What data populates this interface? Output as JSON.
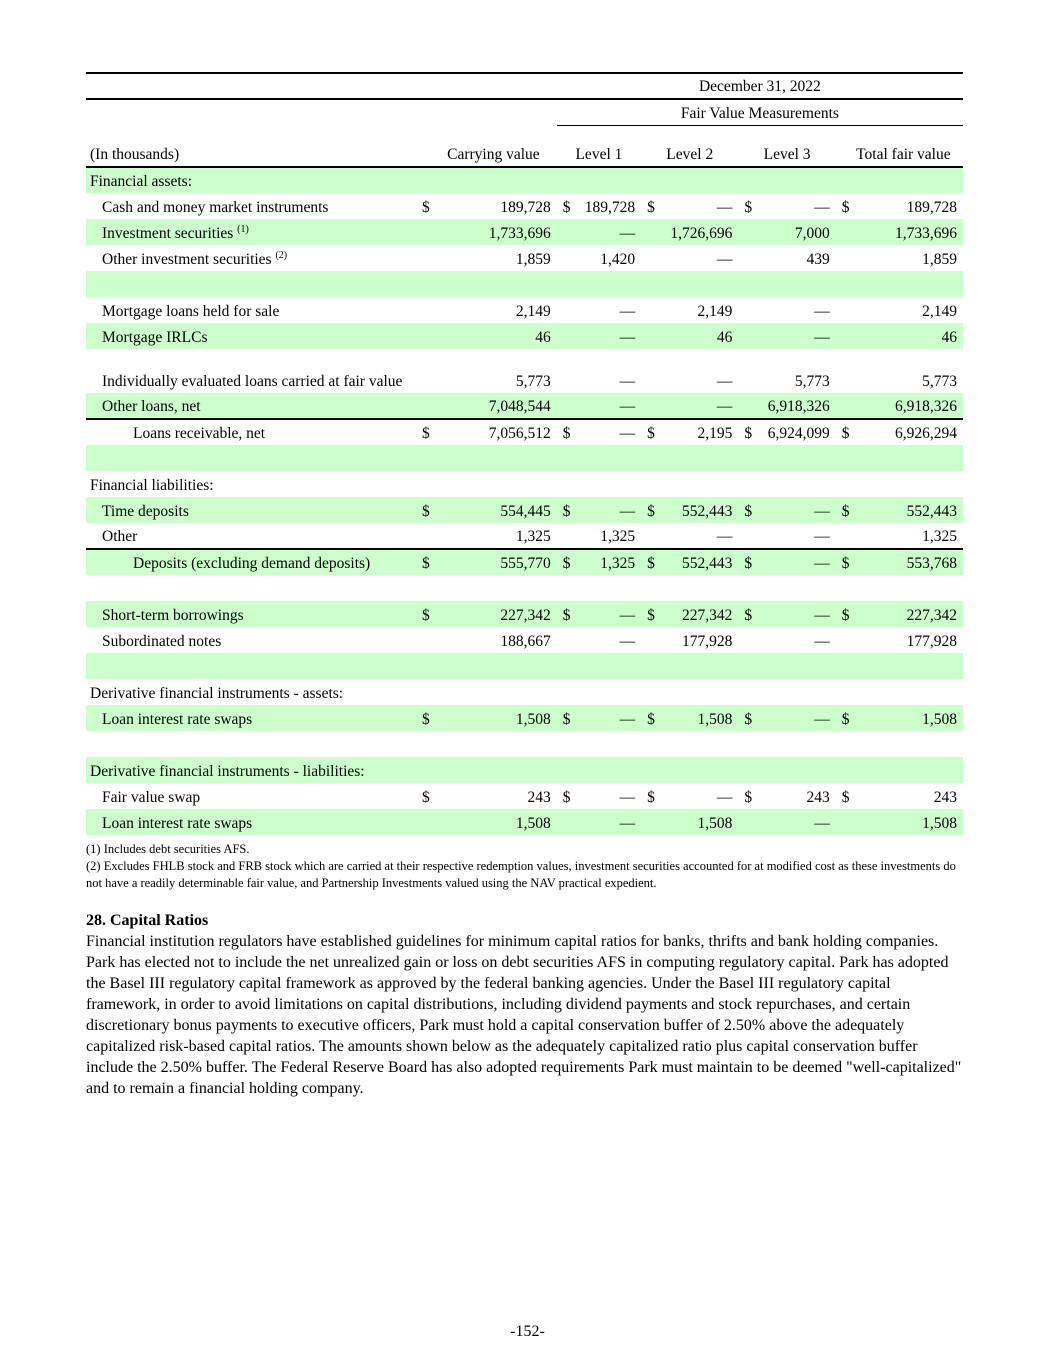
{
  "table": {
    "period": "December 31, 2022",
    "group_header": "Fair Value Measurements",
    "unit_label": "(In thousands)",
    "columns": [
      "Carrying value",
      "Level 1",
      "Level 2",
      "Level 3",
      "Total fair value"
    ],
    "shade_color": "#ccffcc",
    "rows": [
      {
        "label": "Financial assets:",
        "indent": 0,
        "section": true,
        "shaded": true
      },
      {
        "label": "Cash and money market instruments",
        "indent": 1,
        "dollar": true,
        "values": [
          "189,728",
          "189,728",
          "—",
          "—",
          "189,728"
        ],
        "shaded": false
      },
      {
        "label": "Investment securities",
        "sup": "(1)",
        "indent": 1,
        "values": [
          "1,733,696",
          "—",
          "1,726,696",
          "7,000",
          "1,733,696"
        ],
        "shaded": true
      },
      {
        "label": "Other investment securities",
        "sup": "(2)",
        "indent": 1,
        "values": [
          "1,859",
          "1,420",
          "—",
          "439",
          "1,859"
        ],
        "shaded": false
      },
      {
        "label": "",
        "blank": true,
        "shaded": true
      },
      {
        "label": "Mortgage loans held for sale",
        "indent": 1,
        "values": [
          "2,149",
          "—",
          "2,149",
          "—",
          "2,149"
        ],
        "shaded": false
      },
      {
        "label": "Mortgage IRLCs",
        "indent": 1,
        "values": [
          "46",
          "—",
          "46",
          "—",
          "46"
        ],
        "shaded": true
      },
      {
        "label": "Individually evaluated loans carried at fair value",
        "indent": 1,
        "wrap": true,
        "values": [
          "5,773",
          "—",
          "—",
          "5,773",
          "5,773"
        ],
        "shaded": false
      },
      {
        "label": "Other loans, net",
        "indent": 1,
        "values": [
          "7,048,544",
          "—",
          "—",
          "6,918,326",
          "6,918,326"
        ],
        "shaded": true
      },
      {
        "label": "Loans receivable, net",
        "indent": 2,
        "dollar": true,
        "rule": true,
        "values": [
          "7,056,512",
          "—",
          "2,195",
          "6,924,099",
          "6,926,294"
        ],
        "shaded": false
      },
      {
        "label": "",
        "blank": true,
        "shaded": true
      },
      {
        "label": "Financial liabilities:",
        "indent": 0,
        "section": true,
        "shaded": false
      },
      {
        "label": "Time deposits",
        "indent": 1,
        "dollar": true,
        "values": [
          "554,445",
          "—",
          "552,443",
          "—",
          "552,443"
        ],
        "shaded": true
      },
      {
        "label": "Other",
        "indent": 1,
        "values": [
          "1,325",
          "1,325",
          "—",
          "—",
          "1,325"
        ],
        "shaded": false
      },
      {
        "label": "Deposits (excluding demand deposits)",
        "indent": 2,
        "dollar": true,
        "rule": true,
        "values": [
          "555,770",
          "1,325",
          "552,443",
          "—",
          "553,768"
        ],
        "shaded": true
      },
      {
        "label": "",
        "blank": true,
        "shaded": false
      },
      {
        "label": "Short-term borrowings",
        "indent": 1,
        "dollar": true,
        "values": [
          "227,342",
          "—",
          "227,342",
          "—",
          "227,342"
        ],
        "shaded": true
      },
      {
        "label": "Subordinated notes",
        "indent": 1,
        "values": [
          "188,667",
          "—",
          "177,928",
          "—",
          "177,928"
        ],
        "shaded": false
      },
      {
        "label": "",
        "blank": true,
        "shaded": true
      },
      {
        "label": "Derivative financial instruments - assets:",
        "indent": 0,
        "section": true,
        "shaded": false
      },
      {
        "label": "Loan interest rate swaps",
        "indent": 1,
        "dollar": true,
        "values": [
          "1,508",
          "—",
          "1,508",
          "—",
          "1,508"
        ],
        "shaded": true
      },
      {
        "label": "",
        "blank": true,
        "shaded": false
      },
      {
        "label": "Derivative financial instruments - liabilities:",
        "indent": 0,
        "section": true,
        "shaded": true
      },
      {
        "label": "Fair value swap",
        "indent": 1,
        "dollar": true,
        "values": [
          "243",
          "—",
          "—",
          "243",
          "243"
        ],
        "shaded": false
      },
      {
        "label": "Loan interest rate swaps",
        "indent": 1,
        "values": [
          "1,508",
          "—",
          "1,508",
          "—",
          "1,508"
        ],
        "shaded": true
      }
    ]
  },
  "footnotes": [
    "(1) Includes debt securities AFS.",
    "(2) Excludes FHLB stock and FRB stock which are carried at their respective redemption values, investment securities accounted for at modified cost as these investments do not have a readily determinable fair value, and Partnership Investments valued using the NAV practical expedient."
  ],
  "section": {
    "heading": "28. Capital Ratios",
    "body": "Financial institution regulators have established guidelines for minimum capital ratios for banks, thrifts and bank holding companies. Park has elected not to include the net unrealized gain or loss on debt securities AFS in computing regulatory capital. Park has adopted the Basel III regulatory capital framework as approved by the federal banking agencies. Under the Basel III regulatory capital framework, in order to avoid limitations on capital distributions, including dividend payments and stock repurchases, and certain discretionary bonus payments to executive officers, Park must hold a capital conservation buffer of 2.50% above the adequately capitalized risk-based capital ratios.  The amounts shown below as the adequately capitalized ratio plus capital conservation buffer include the 2.50% buffer. The Federal Reserve Board has also adopted requirements Park must maintain to be deemed \"well-capitalized\" and to remain a financial holding company."
  },
  "page_number": "-152-"
}
